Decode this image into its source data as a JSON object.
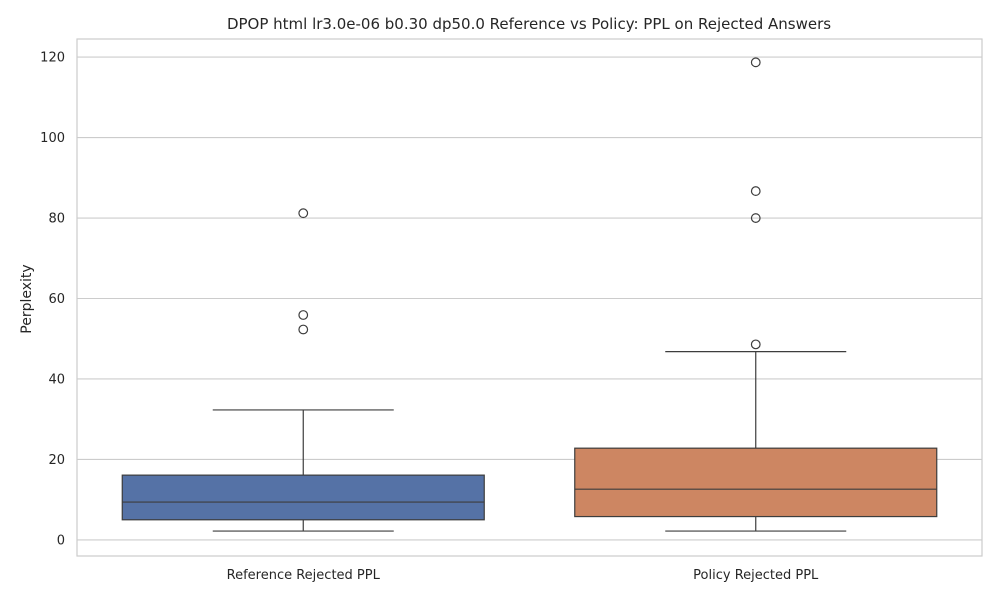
{
  "chart_data": {
    "type": "box",
    "title": "DPOP html lr3.0e-06 b0.30 dp50.0 Reference vs Policy: PPL on Rejected Answers",
    "xlabel": "",
    "ylabel": "Perplexity",
    "ylim": [
      -4,
      124.5
    ],
    "yticks": [
      0,
      20,
      40,
      60,
      80,
      100,
      120
    ],
    "grid": true,
    "categories": [
      "Reference Rejected PPL",
      "Policy Rejected PPL"
    ],
    "series": [
      {
        "color": "#5572a6",
        "whisker_low": 2.2,
        "q1": 5.0,
        "median": 9.4,
        "q3": 16.1,
        "whisker_high": 32.3,
        "outliers": [
          81.2,
          55.9,
          52.3
        ]
      },
      {
        "color": "#cd8662",
        "whisker_low": 2.2,
        "q1": 5.8,
        "median": 12.6,
        "q3": 22.8,
        "whisker_high": 46.8,
        "outliers": [
          118.7,
          86.7,
          80.0,
          48.6
        ]
      }
    ]
  }
}
